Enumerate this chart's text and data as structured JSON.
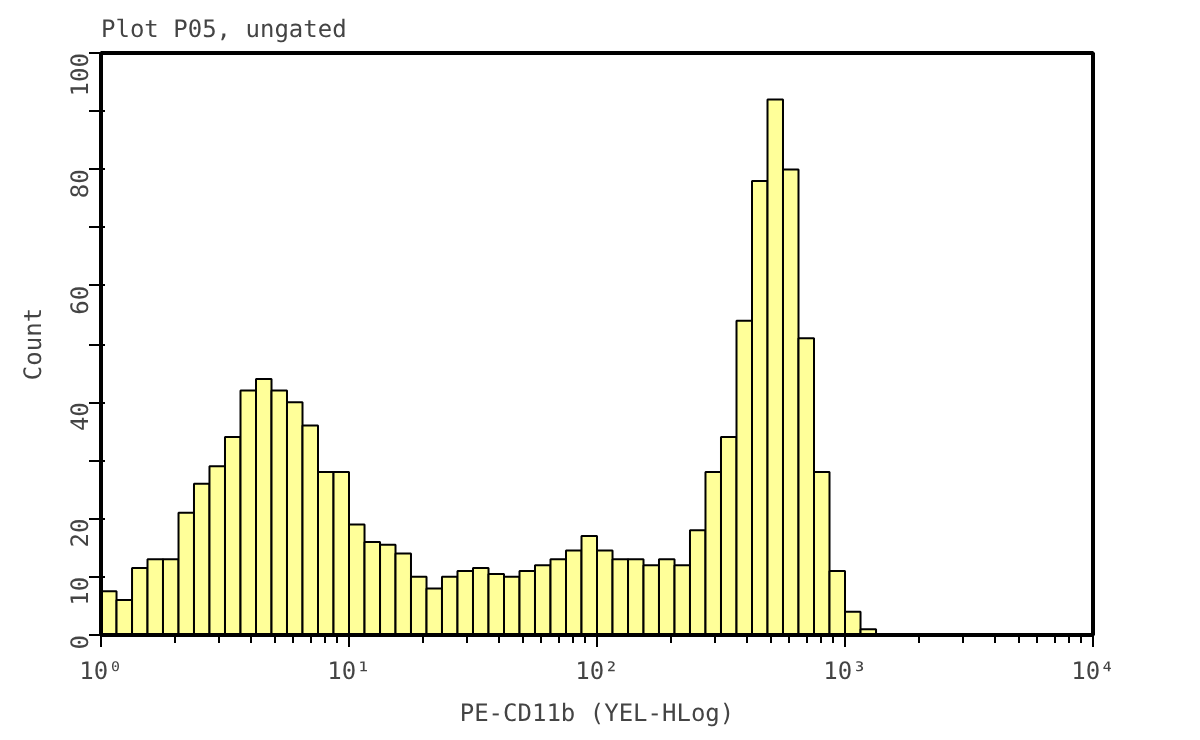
{
  "chart_data": {
    "type": "histogram",
    "title": "Plot P05, ungated",
    "xlabel": "PE-CD11b (YEL-HLog)",
    "ylabel": "Count",
    "log": "x",
    "grid": false,
    "color": "#ffff99",
    "bins": [
      1,
      1.155,
      1.334,
      1.54,
      1.778,
      2.054,
      2.371,
      2.738,
      3.162,
      3.652,
      4.217,
      4.87,
      5.623,
      6.494,
      7.499,
      8.66,
      10,
      11.55,
      13.34,
      15.4,
      17.78,
      20.54,
      23.71,
      27.38,
      31.62,
      36.52,
      42.17,
      48.7,
      56.23,
      64.94,
      74.99,
      86.6,
      100,
      115.5,
      133.4,
      154,
      177.8,
      205.4,
      237.1,
      273.8,
      316.2,
      365.2,
      421.7,
      487,
      562.3,
      649.4,
      749.9,
      866,
      1000,
      1155,
      1334
    ],
    "values": [
      7.5,
      6,
      11.5,
      13,
      13,
      21,
      26,
      29,
      34,
      42,
      44,
      42,
      40,
      36,
      28,
      28,
      19,
      16,
      15.5,
      14,
      10,
      8,
      10,
      11,
      11.5,
      10.5,
      10,
      11,
      12,
      13,
      14.5,
      17,
      14.5,
      13,
      13,
      12,
      13,
      12,
      18,
      28,
      34,
      54,
      78,
      92,
      80,
      51,
      28,
      11,
      4,
      1
    ],
    "xlim": [
      1,
      10000
    ],
    "ylim": [
      0,
      100
    ],
    "xticks": [
      {
        "value": 1,
        "label": "10⁰"
      },
      {
        "value": 10,
        "label": "10¹"
      },
      {
        "value": 100,
        "label": "10²"
      },
      {
        "value": 1000,
        "label": "10³"
      },
      {
        "value": 10000,
        "label": "10⁴"
      }
    ],
    "yticks": [
      0,
      10,
      20,
      {
        "value": 30,
        "label": null
      },
      40,
      {
        "value": 50,
        "label": null
      },
      60,
      {
        "value": 70,
        "label": null
      },
      80,
      {
        "value": 90,
        "label": null
      },
      100
    ]
  }
}
